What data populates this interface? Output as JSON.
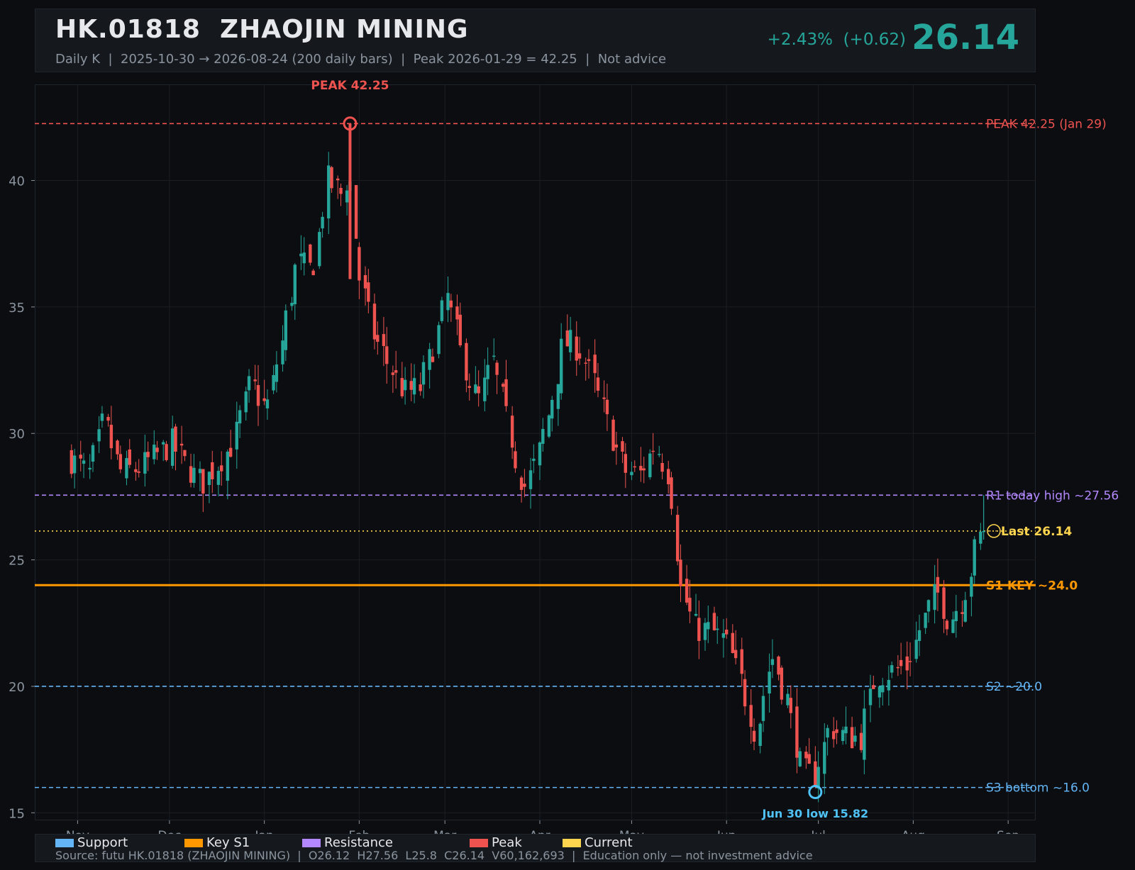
{
  "header": {
    "ticker": "HK.01818  ZHAOJIN MINING",
    "subtitle": "Daily K  |  2025-10-30 → 2026-08-24 (200 daily bars)  |  Peak 2026-01-29 = 42.25  |  Not advice",
    "change": "+2.43%  (+0.62)",
    "last": "26.14"
  },
  "colors": {
    "background": "#0b0d10",
    "up": "#26a69a",
    "down": "#ef5350",
    "support": "#64b5f6",
    "key_support": "#ff9800",
    "resistance": "#b388ff",
    "peak": "#ef5350",
    "current": "#ffd54f"
  },
  "chart_data": {
    "type": "candlestick",
    "title": "HK.01818  ZHAOJIN MINING",
    "xlabel": "",
    "ylabel": "",
    "ylim": [
      14.7,
      43.8
    ],
    "grid": true,
    "yticks": [
      15,
      20,
      25,
      30,
      35,
      40
    ],
    "x_range": [
      "2025-10-30",
      "2026-09-10"
    ],
    "xticks": [
      {
        "date": "2025-11-01",
        "label": "Nov"
      },
      {
        "date": "2025-12-01",
        "label": "Dec"
      },
      {
        "date": "2026-01-01",
        "label": "Jan"
      },
      {
        "date": "2026-02-01",
        "label": "Feb"
      },
      {
        "date": "2026-03-01",
        "label": "Mar"
      },
      {
        "date": "2026-04-01",
        "label": "Apr"
      },
      {
        "date": "2026-05-01",
        "label": "May"
      },
      {
        "date": "2026-06-01",
        "label": "Jun"
      },
      {
        "date": "2026-07-01",
        "label": "Jul"
      },
      {
        "date": "2026-08-01",
        "label": "Aug"
      },
      {
        "date": "2026-09-01",
        "label": "Sep"
      }
    ],
    "close_path": [
      [
        "2025-10-30",
        29.0
      ],
      [
        "2025-11-05",
        28.4
      ],
      [
        "2025-11-10",
        30.5
      ],
      [
        "2025-11-15",
        28.5
      ],
      [
        "2025-11-21",
        28.6
      ],
      [
        "2025-11-28",
        29.2
      ],
      [
        "2025-12-02",
        29.6
      ],
      [
        "2025-12-07",
        28.7
      ],
      [
        "2025-12-12",
        28.0
      ],
      [
        "2025-12-17",
        28.8
      ],
      [
        "2025-12-22",
        29.6
      ],
      [
        "2025-12-28",
        32.0
      ],
      [
        "2026-01-02",
        30.9
      ],
      [
        "2026-01-07",
        33.6
      ],
      [
        "2026-01-12",
        36.8
      ],
      [
        "2026-01-17",
        36.4
      ],
      [
        "2026-01-22",
        40.0
      ],
      [
        "2026-01-27",
        39.4
      ],
      [
        "2026-01-29",
        40.6
      ],
      [
        "2026-02-01",
        36.4
      ],
      [
        "2026-02-06",
        33.9
      ],
      [
        "2026-02-11",
        32.7
      ],
      [
        "2026-02-16",
        31.6
      ],
      [
        "2026-02-21",
        31.8
      ],
      [
        "2026-02-26",
        33.6
      ],
      [
        "2026-03-02",
        35.4
      ],
      [
        "2026-03-07",
        33.0
      ],
      [
        "2026-03-12",
        31.2
      ],
      [
        "2026-03-17",
        32.8
      ],
      [
        "2026-03-22",
        30.3
      ],
      [
        "2026-03-27",
        27.8
      ],
      [
        "2026-03-31",
        28.8
      ],
      [
        "2026-04-05",
        31.2
      ],
      [
        "2026-04-09",
        33.6
      ],
      [
        "2026-04-14",
        33.4
      ],
      [
        "2026-04-19",
        32.0
      ],
      [
        "2026-04-24",
        30.2
      ],
      [
        "2026-04-29",
        28.5
      ],
      [
        "2026-05-04",
        28.4
      ],
      [
        "2026-05-09",
        29.6
      ],
      [
        "2026-05-14",
        28.2
      ],
      [
        "2026-05-17",
        24.0
      ],
      [
        "2026-05-22",
        22.3
      ],
      [
        "2026-05-27",
        22.2
      ],
      [
        "2026-06-01",
        21.8
      ],
      [
        "2026-06-06",
        20.2
      ],
      [
        "2026-06-11",
        18.1
      ],
      [
        "2026-06-16",
        21.3
      ],
      [
        "2026-06-21",
        19.5
      ],
      [
        "2026-06-26",
        16.6
      ],
      [
        "2026-06-30",
        16.5
      ],
      [
        "2026-07-05",
        18.4
      ],
      [
        "2026-07-10",
        18.0
      ],
      [
        "2026-07-15",
        18.0
      ],
      [
        "2026-07-20",
        20.4
      ],
      [
        "2026-07-25",
        20.6
      ],
      [
        "2026-07-30",
        20.8
      ],
      [
        "2026-08-04",
        22.4
      ],
      [
        "2026-08-09",
        23.8
      ],
      [
        "2026-08-13",
        22.6
      ],
      [
        "2026-08-18",
        23.6
      ],
      [
        "2026-08-22",
        25.6
      ],
      [
        "2026-08-24",
        26.14
      ]
    ],
    "last_bar": {
      "date": "2026-08-24",
      "open": 26.12,
      "high": 27.56,
      "low": 25.8,
      "close": 26.14
    },
    "levels": [
      {
        "label": "PEAK 42.25 (Jan 29)",
        "value": 42.25,
        "kind": "peak"
      },
      {
        "label": "R1 today high ~27.56",
        "value": 27.56,
        "kind": "resistance"
      },
      {
        "label": "Last 26.14",
        "value": 26.14,
        "kind": "current"
      },
      {
        "label": "S1 KEY ~24.0",
        "value": 24.0,
        "kind": "key_support"
      },
      {
        "label": "S2 ~20.0",
        "value": 20.0,
        "kind": "support"
      },
      {
        "label": "S3 bottom ~16.0",
        "value": 16.0,
        "kind": "support"
      }
    ],
    "annotations": [
      {
        "label": "PEAK 42.25",
        "date": "2026-01-29",
        "value": 42.25,
        "kind": "peak"
      },
      {
        "label": "Jun 30 low 15.82",
        "date": "2026-06-30",
        "value": 15.82,
        "kind": "support"
      }
    ],
    "legend": {
      "placement": "bottom",
      "entries": [
        {
          "label": "Support",
          "color": "#64b5f6"
        },
        {
          "label": "Key S1",
          "color": "#ff9800"
        },
        {
          "label": "Resistance",
          "color": "#b388ff"
        },
        {
          "label": "Peak",
          "color": "#ef5350"
        },
        {
          "label": "Current",
          "color": "#ffd54f"
        }
      ]
    }
  },
  "footer": {
    "source": "Source: futu HK.01818 (ZHAOJIN MINING)  |  O26.12  H27.56  L25.8  C26.14  V60,162,693  |  Education only — not investment advice"
  }
}
